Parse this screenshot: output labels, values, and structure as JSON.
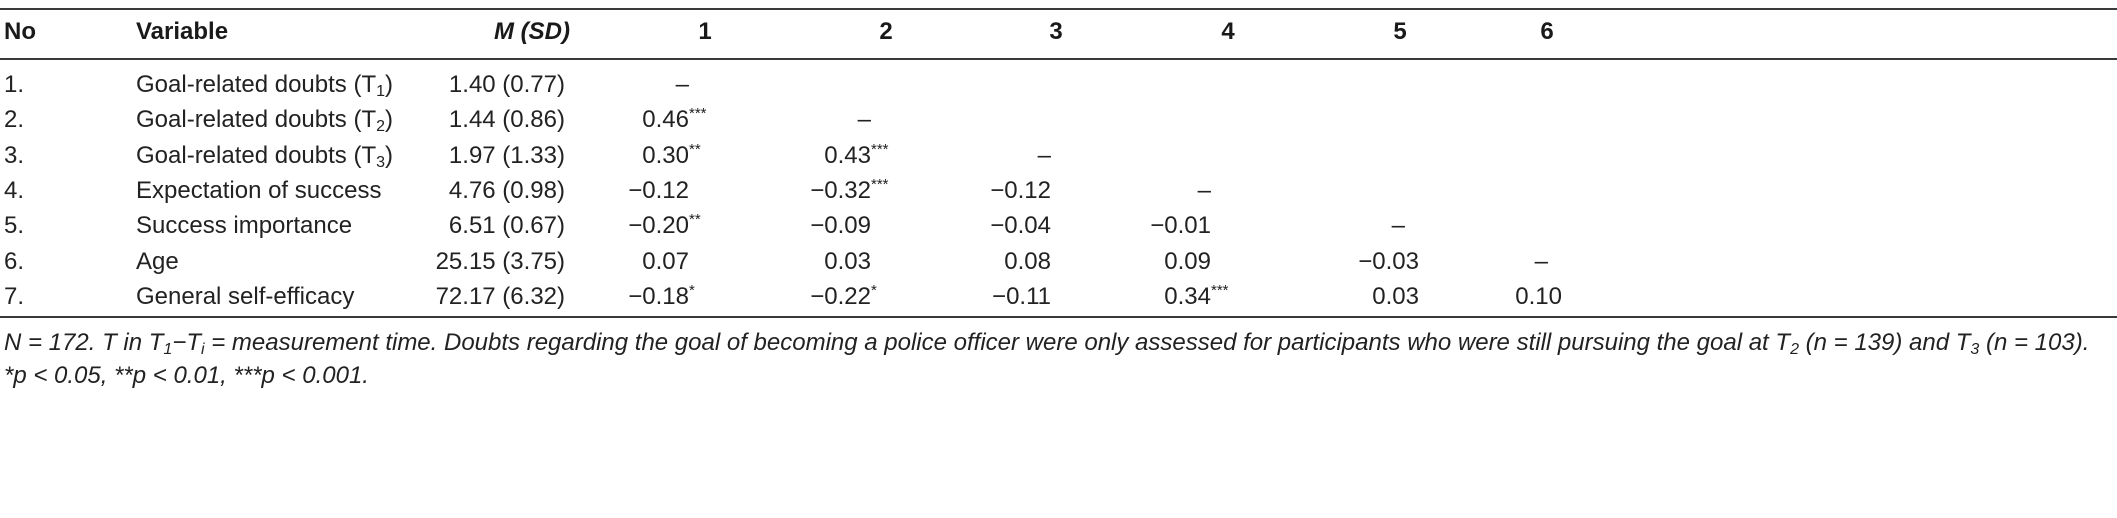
{
  "headers": {
    "no": "No",
    "variable": "Variable",
    "m_sd": "M (SD)",
    "c1": "1",
    "c2": "2",
    "c3": "3",
    "c4": "4",
    "c5": "5",
    "c6": "6"
  },
  "rows": [
    {
      "no": "1.",
      "var": "Goal-related doubts (T",
      "var_sub": "1",
      "var_end": ")",
      "msd": "1.40 (0.77)",
      "c1": "–",
      "c1s": "",
      "c2": "",
      "c2s": "",
      "c3": "",
      "c3s": "",
      "c4": "",
      "c4s": "",
      "c5": "",
      "c6": ""
    },
    {
      "no": "2.",
      "var": "Goal-related doubts (T",
      "var_sub": "2",
      "var_end": ")",
      "msd": "1.44 (0.86)",
      "c1": "0.46",
      "c1s": "***",
      "c2": "–",
      "c2s": "",
      "c3": "",
      "c3s": "",
      "c4": "",
      "c4s": "",
      "c5": "",
      "c6": ""
    },
    {
      "no": "3.",
      "var": "Goal-related doubts (T",
      "var_sub": "3",
      "var_end": ")",
      "msd": "1.97 (1.33)",
      "c1": "0.30",
      "c1s": "**",
      "c2": "0.43",
      "c2s": "***",
      "c3": "–",
      "c3s": "",
      "c4": "",
      "c4s": "",
      "c5": "",
      "c6": ""
    },
    {
      "no": "4.",
      "var": "Expectation of success",
      "var_sub": "",
      "var_end": "",
      "msd": "4.76 (0.98)",
      "c1": "−0.12",
      "c1s": "",
      "c2": "−0.32",
      "c2s": "***",
      "c3": "−0.12",
      "c3s": "",
      "c4": "–",
      "c4s": "",
      "c5": "",
      "c6": ""
    },
    {
      "no": "5.",
      "var": "Success importance",
      "var_sub": "",
      "var_end": "",
      "msd": "6.51 (0.67)",
      "c1": "−0.20",
      "c1s": "**",
      "c2": "−0.09",
      "c2s": "",
      "c3": "−0.04",
      "c3s": "",
      "c4": "−0.01",
      "c4s": "",
      "c5": "–",
      "c6": ""
    },
    {
      "no": "6.",
      "var": "Age",
      "var_sub": "",
      "var_end": "",
      "msd": "25.15 (3.75)",
      "c1": "0.07",
      "c1s": "",
      "c2": "0.03",
      "c2s": "",
      "c3": "0.08",
      "c3s": "",
      "c4": "0.09",
      "c4s": "",
      "c5": "−0.03",
      "c6": "–"
    },
    {
      "no": "7.",
      "var": "General self-efficacy",
      "var_sub": "",
      "var_end": "",
      "msd": "72.17 (6.32)",
      "c1": "−0.18",
      "c1s": "*",
      "c2": "−0.22",
      "c2s": "*",
      "c3": "−0.11",
      "c3s": "",
      "c4": "0.34",
      "c4s": "***",
      "c5": "0.03",
      "c6": "0.10"
    }
  ],
  "note": {
    "p1": "N = 172. T in T",
    "s1": "1",
    "p2": "−T",
    "s2": "i",
    "p3": " = measurement time. Doubts regarding the goal of becoming a police officer were only assessed for participants who were still pursuing the goal at T",
    "s3": "2",
    "p4": " (n = 139) and T",
    "s4": "3",
    "p5": " (n = 103). *p < 0.05, **p < 0.01, ***p < 0.001."
  }
}
